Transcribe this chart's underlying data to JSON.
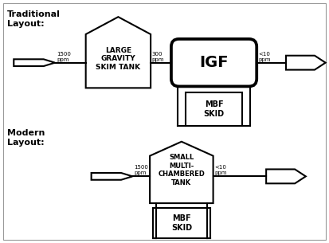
{
  "bg_color": "#ffffff",
  "border_color": "#aaaaaa",
  "line_color": "#000000",
  "fill_color": "#ffffff",
  "title1": "Traditional\nLayout:",
  "title2": "Modern\nLayout:",
  "trad_label1": "LARGE\nGRAVITY\nSKIM TANK",
  "trad_label2": "IGF",
  "trad_label3": "MBF\nSKID",
  "mod_label1": "SMALL\nMULTI-\nCHAMBERED\nTANK",
  "mod_label2": "MBF\nSKID",
  "ppm1": "1500\nppm",
  "ppm2": "300\nppm",
  "ppm3": "<10\nppm",
  "ppm4": "1500\nppm",
  "ppm5": "<10\nppm",
  "figw": 4.13,
  "figh": 3.05,
  "dpi": 100
}
